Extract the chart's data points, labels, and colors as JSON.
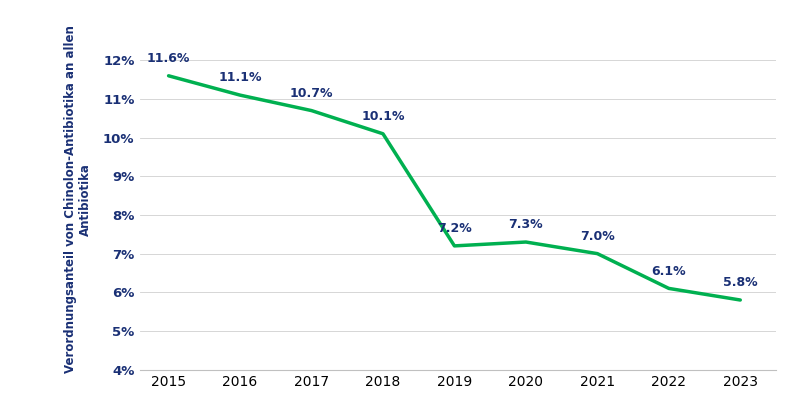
{
  "years": [
    2015,
    2016,
    2017,
    2018,
    2019,
    2020,
    2021,
    2022,
    2023
  ],
  "values": [
    11.6,
    11.1,
    10.7,
    10.1,
    7.2,
    7.3,
    7.0,
    6.1,
    5.8
  ],
  "labels": [
    "11.6%",
    "11.1%",
    "10.7%",
    "10.1%",
    "7.2%",
    "7.3%",
    "7.0%",
    "6.1%",
    "5.8%"
  ],
  "line_color": "#00b050",
  "line_width": 2.5,
  "ylabel_line1": "Verordnungsanteil von Chinolon-Antibiotika an allen",
  "ylabel_line2": "Antibiotika",
  "ylabel_color": "#1a3075",
  "ylabel_fontsize": 8.5,
  "tick_color": "#1a3075",
  "tick_fontsize": 9.5,
  "label_color": "#1a3075",
  "label_fontsize": 9,
  "ylim": [
    4,
    12.8
  ],
  "yticks": [
    4,
    5,
    6,
    7,
    8,
    9,
    10,
    11,
    12
  ],
  "background_color": "#ffffff",
  "grid_color": "#d0d0d0",
  "spine_color": "#c0c0c0",
  "label_offsets": [
    0.28,
    0.28,
    0.28,
    0.28,
    0.28,
    0.28,
    0.28,
    0.28,
    0.28
  ]
}
